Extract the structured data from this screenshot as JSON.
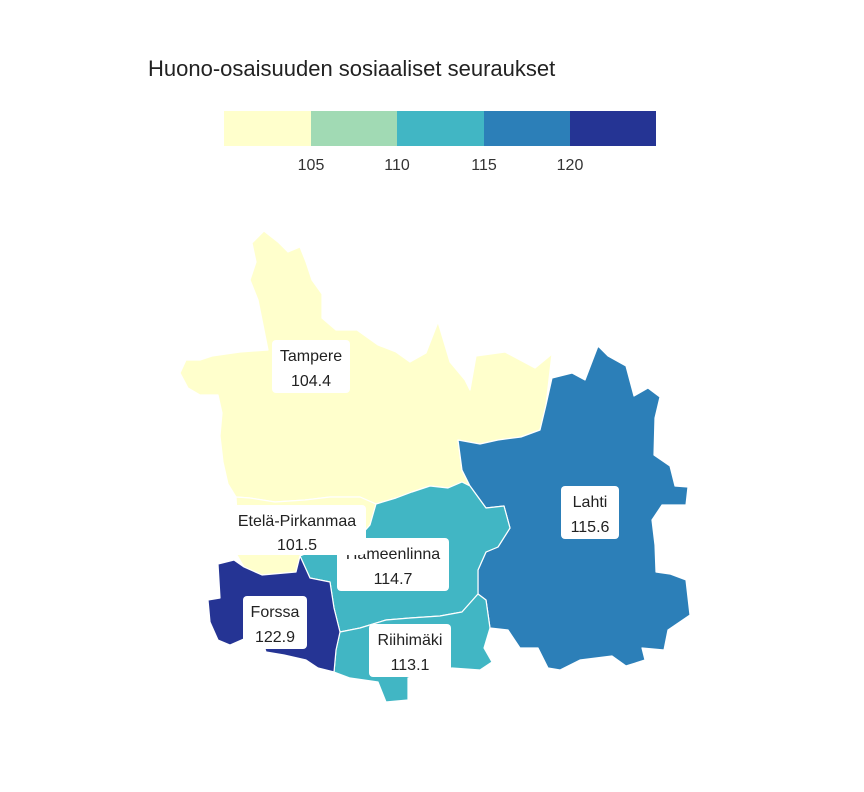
{
  "title": "Huono-osaisuuden sosiaaliset seuraukset",
  "legend": {
    "ticks": [
      "105",
      "110",
      "115",
      "120"
    ],
    "colors": [
      "#ffffcc",
      "#a1dab4",
      "#41b6c4",
      "#2c7fb8",
      "#253494"
    ]
  },
  "regions": [
    {
      "key": "tampere",
      "name": "Tampere",
      "value": "104.4",
      "color": "#ffffcc"
    },
    {
      "key": "etela-pirkanmaa",
      "name": "Etelä-Pirkanmaa",
      "value": "101.5",
      "color": "#ffffcc"
    },
    {
      "key": "lahti",
      "name": "Lahti",
      "value": "115.6",
      "color": "#2c7fb8"
    },
    {
      "key": "hameenlinna",
      "name": "Hämeenlinna",
      "value": "114.7",
      "color": "#41b6c4"
    },
    {
      "key": "riihimaki",
      "name": "Riihimäki",
      "value": "113.1",
      "color": "#41b6c4"
    },
    {
      "key": "forssa",
      "name": "Forssa",
      "value": "122.9",
      "color": "#253494"
    }
  ]
}
